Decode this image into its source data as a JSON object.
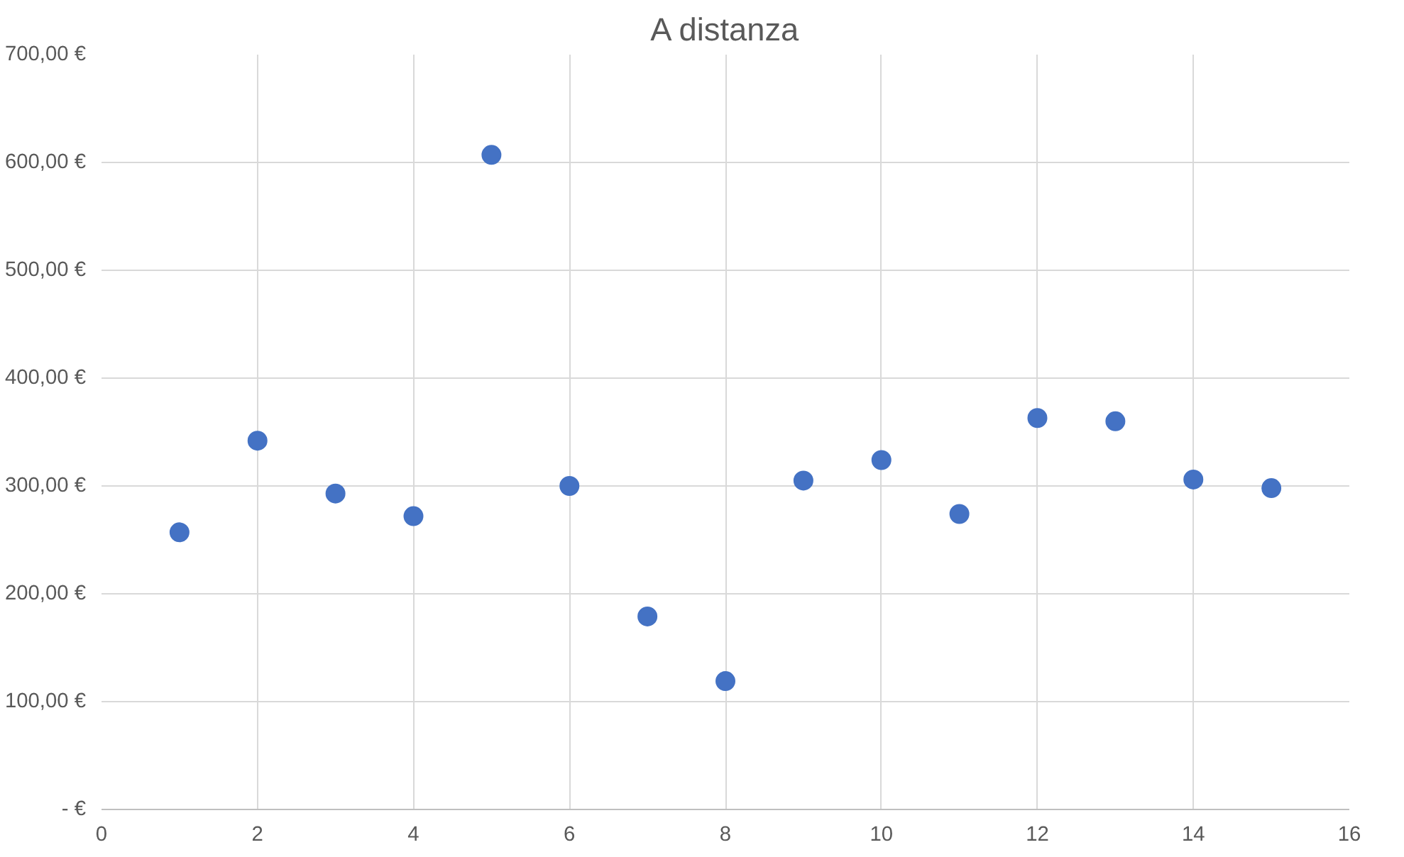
{
  "chart_data": {
    "type": "scatter",
    "title": "A distanza",
    "x": [
      1,
      2,
      3,
      4,
      5,
      6,
      7,
      8,
      9,
      10,
      11,
      12,
      13,
      14,
      15
    ],
    "series": [
      {
        "color": "#4472c4",
        "values": [
          257,
          342,
          293,
          272,
          607,
          300,
          179,
          119,
          305,
          324,
          274,
          363,
          360,
          306,
          298
        ]
      }
    ],
    "xlim": [
      0,
      16
    ],
    "xticks": [
      0,
      2,
      4,
      6,
      8,
      10,
      12,
      14,
      16
    ],
    "ylim": [
      0,
      700
    ],
    "yticks": [
      {
        "value": 0,
        "label": "- €"
      },
      {
        "value": 100,
        "label": "100,00 €"
      },
      {
        "value": 200,
        "label": "200,00 €"
      },
      {
        "value": 300,
        "label": "300,00 €"
      },
      {
        "value": 400,
        "label": "400,00 €"
      },
      {
        "value": 500,
        "label": "500,00 €"
      },
      {
        "value": 600,
        "label": "600,00 €"
      },
      {
        "value": 700,
        "label": "700,00 €"
      }
    ],
    "grid": true,
    "marker": "circle"
  }
}
